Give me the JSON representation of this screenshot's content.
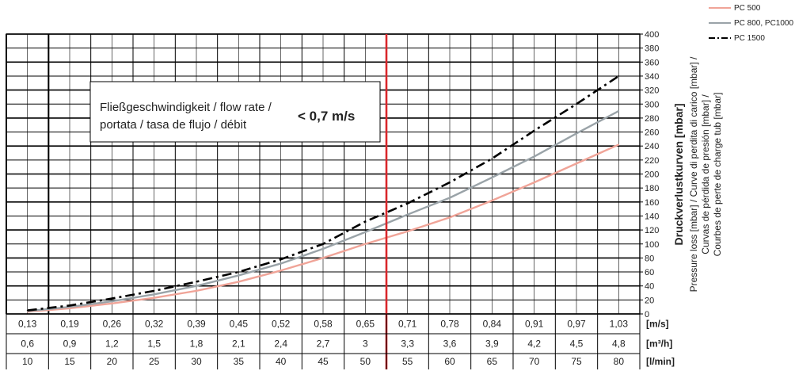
{
  "chart_data": {
    "type": "line",
    "ylabel_main": "Druckverlustkurven [mbar]",
    "ylabel_lines": [
      "Pressure loss [mbar] / Curve di perdita di carico [mbar] /",
      "Curvas de pérdida de presión [mbar] /",
      "Courbes de perte de charge tub [mbar]"
    ],
    "ylim": [
      0,
      400
    ],
    "yticks": [
      0,
      20,
      40,
      60,
      80,
      100,
      120,
      140,
      160,
      180,
      200,
      220,
      240,
      260,
      280,
      300,
      320,
      340,
      360,
      380,
      400
    ],
    "x_lmin": [
      10,
      15,
      20,
      25,
      30,
      35,
      40,
      45,
      50,
      55,
      60,
      65,
      70,
      75,
      80
    ],
    "xlim": [
      7.5,
      82.5
    ],
    "x_axes": [
      {
        "unit": "[m/s]",
        "labels": [
          "0,13",
          "0,19",
          "0,26",
          "0,32",
          "0,39",
          "0,45",
          "0,52",
          "0,58",
          "0,65",
          "0,71",
          "0,78",
          "0,84",
          "0,91",
          "0,97",
          "1,03"
        ]
      },
      {
        "unit": "[m³/h]",
        "labels": [
          "0,6",
          "0,9",
          "1,2",
          "1,5",
          "1,8",
          "2,1",
          "2,4",
          "2,7",
          "3",
          "3,3",
          "3,6",
          "3,9",
          "4,2",
          "4,5",
          "4,8"
        ]
      },
      {
        "unit": "[l/min]",
        "labels": [
          "10",
          "15",
          "20",
          "25",
          "30",
          "35",
          "40",
          "45",
          "50",
          "55",
          "60",
          "65",
          "70",
          "75",
          "80"
        ]
      }
    ],
    "series": [
      {
        "name": "PC 500",
        "color": "#f0a498",
        "dash": "solid",
        "values": [
          3,
          8,
          15,
          23,
          33,
          46,
          62,
          80,
          100,
          118,
          138,
          162,
          188,
          215,
          242
        ]
      },
      {
        "name": "PC 800, PC1000",
        "color": "#9aa3a8",
        "dash": "solid",
        "values": [
          4,
          10,
          18,
          28,
          40,
          55,
          72,
          93,
          117,
          142,
          166,
          195,
          225,
          258,
          290
        ]
      },
      {
        "name": "PC 1500",
        "color": "#000000",
        "dash": "dashdot",
        "values": [
          5,
          12,
          22,
          33,
          46,
          60,
          78,
          100,
          132,
          158,
          188,
          222,
          262,
          300,
          340
        ]
      }
    ],
    "threshold_line": {
      "x_lmin": 52.5,
      "color": "#d9262b"
    },
    "annotation": {
      "lines": [
        "Fließgeschwindigkeit / flow rate /",
        "portata / tasa de flujo / débit"
      ],
      "value": "< 0,7 m/s"
    },
    "legend_position": "top-right",
    "grid": true
  }
}
